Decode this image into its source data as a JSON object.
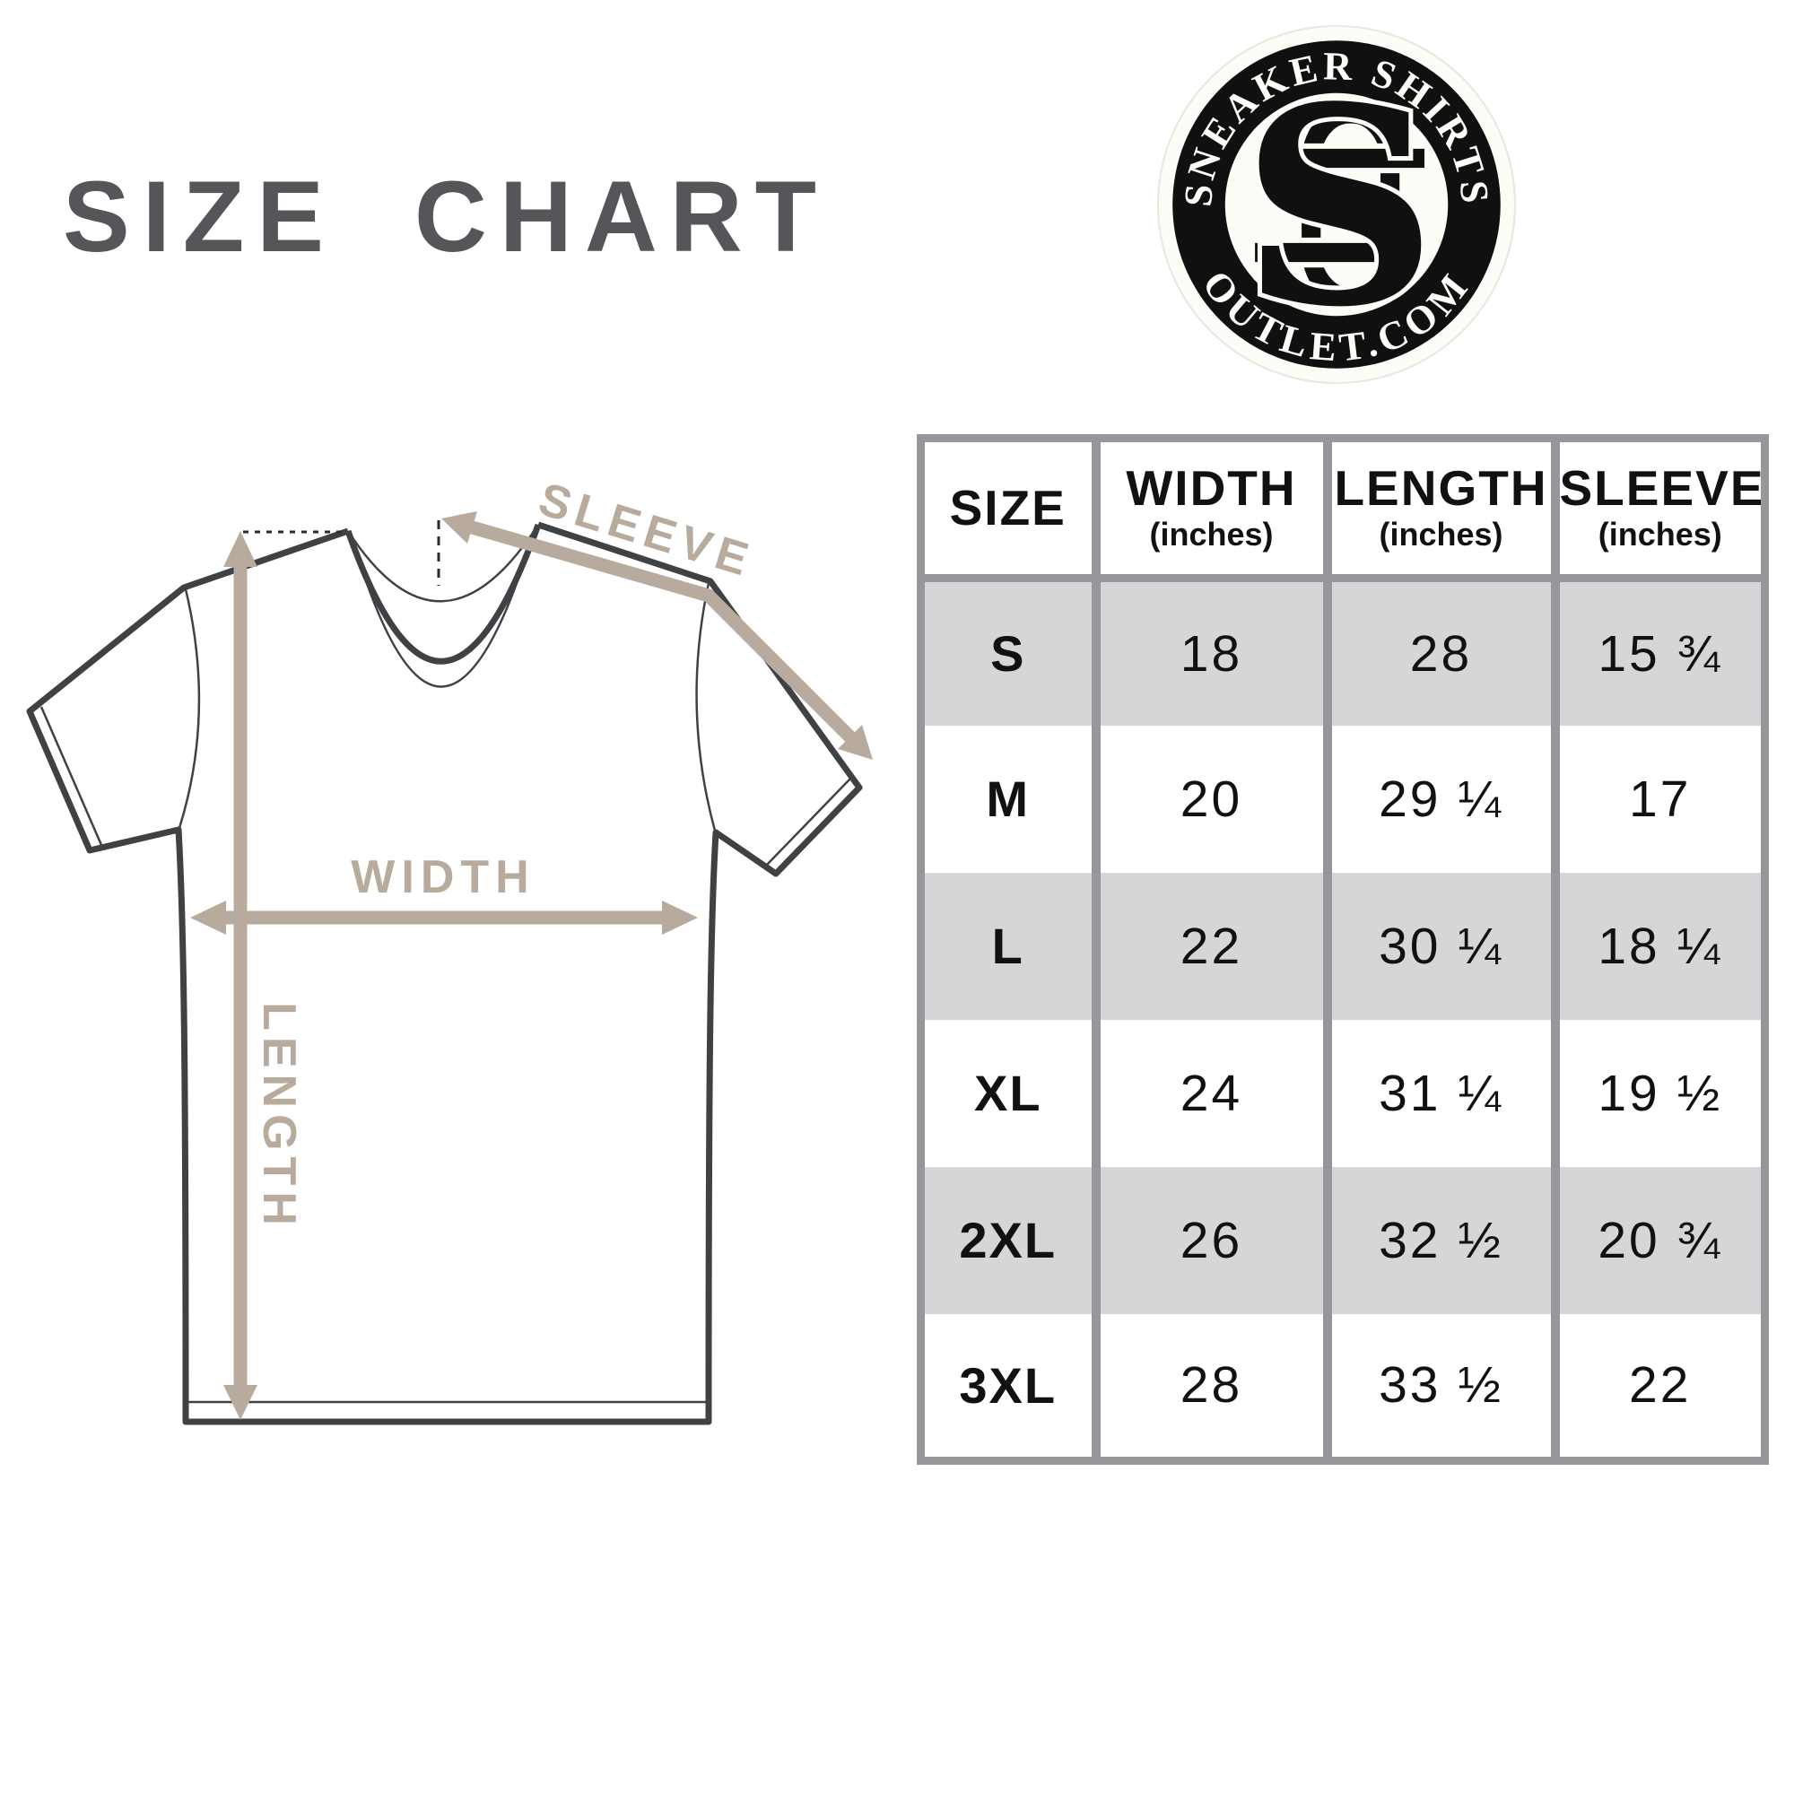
{
  "title": "SIZE CHART",
  "logo": {
    "arc_top": "SNEAKER SHIRTS",
    "arc_bottom": "OUTLET.COM",
    "monogram": "SSO",
    "badge_color": "#101010",
    "inner_color": "#fdfcf6"
  },
  "diagram": {
    "sleeve_label": "SLEEVE",
    "width_label": "WIDTH",
    "length_label": "LENGTH",
    "arrow_color": "#b8ab9d",
    "outline_color": "#3f4144"
  },
  "chart_data": {
    "type": "table",
    "title": "SIZE CHART",
    "columns": [
      {
        "label": "SIZE",
        "sub": ""
      },
      {
        "label": "WIDTH",
        "sub": "(inches)"
      },
      {
        "label": "LENGTH",
        "sub": "(inches)"
      },
      {
        "label": "SLEEVE",
        "sub": "(inches)"
      }
    ],
    "rows": [
      {
        "size": "S",
        "width": "18",
        "length": "28",
        "sleeve": "15 ¾"
      },
      {
        "size": "M",
        "width": "20",
        "length": "29 ¼",
        "sleeve": "17"
      },
      {
        "size": "L",
        "width": "22",
        "length": "30 ¼",
        "sleeve": "18 ¼"
      },
      {
        "size": "XL",
        "width": "24",
        "length": "31 ¼",
        "sleeve": "19 ½"
      },
      {
        "size": "2XL",
        "width": "26",
        "length": "32 ½",
        "sleeve": "20 ¾"
      },
      {
        "size": "3XL",
        "width": "28",
        "length": "33 ½",
        "sleeve": "22"
      }
    ],
    "row_shading": [
      "gray",
      "white",
      "gray",
      "white",
      "gray",
      "white"
    ],
    "colors": {
      "row_gray": "#d6d6d8",
      "border": "#95979a",
      "text": "#111111"
    }
  }
}
